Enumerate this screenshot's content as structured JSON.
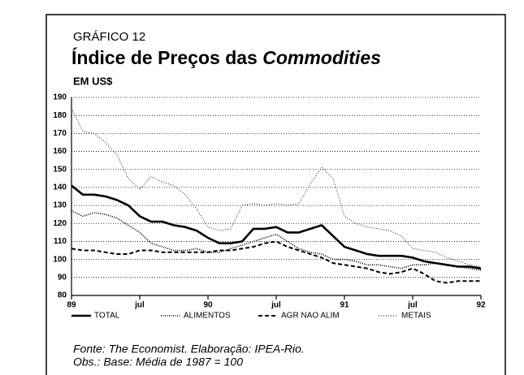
{
  "chart_data": {
    "type": "line",
    "label": "GRÁFICO 12",
    "title": [
      "Índice de Preços das",
      "Commodities"
    ],
    "subtitle": "EM US$",
    "notes": [
      "Fonte: The Economist. Elaboração: IPEA-Rio.",
      "Obs.: Base: Média de 1987 = 100"
    ],
    "x": [
      0,
      1,
      2,
      3,
      4,
      5,
      6,
      7,
      8,
      9,
      10,
      11,
      12,
      13,
      14,
      15,
      16,
      17,
      18,
      19,
      20,
      21,
      22,
      23,
      24,
      25,
      26,
      27,
      28,
      29,
      30,
      31,
      32,
      33,
      34,
      35,
      36
    ],
    "xlim": [
      0,
      36
    ],
    "xticks": [
      {
        "value": 0,
        "label": "89"
      },
      {
        "value": 6,
        "label": "jul"
      },
      {
        "value": 12,
        "label": "90"
      },
      {
        "value": 18,
        "label": "jul"
      },
      {
        "value": 24,
        "label": "91"
      },
      {
        "value": 30,
        "label": "jul"
      },
      {
        "value": 36,
        "label": "92"
      }
    ],
    "ylim": [
      80,
      190
    ],
    "yticks": [
      80,
      90,
      100,
      110,
      120,
      130,
      140,
      150,
      160,
      170,
      180,
      190
    ],
    "grid": true,
    "legend": "bottom",
    "series": [
      {
        "name": "TOTAL",
        "color": "#000000",
        "style": "thick",
        "values": [
          141,
          136,
          136,
          135,
          133,
          130,
          124,
          121,
          121,
          119,
          118,
          116,
          112,
          109,
          109,
          110,
          117,
          117,
          118,
          115,
          115,
          117,
          119,
          113,
          107,
          105,
          103,
          102,
          102,
          102,
          101,
          99,
          98,
          97,
          96,
          96,
          95
        ]
      },
      {
        "name": "ALIMENTOS",
        "color": "#000000",
        "style": "dotted",
        "values": [
          127,
          124,
          126,
          125,
          123,
          119,
          115,
          109,
          107,
          105,
          105,
          106,
          104,
          104,
          106,
          108,
          110,
          112,
          114,
          110,
          106,
          104,
          103,
          100,
          100,
          99,
          97,
          97,
          96,
          95,
          97,
          97,
          98,
          97,
          96,
          95,
          94
        ]
      },
      {
        "name": "AGR NAO ALIM",
        "color": "#000000",
        "style": "dashed",
        "values": [
          106,
          105,
          105,
          104,
          103,
          103,
          105,
          105,
          104,
          104,
          104,
          104,
          104,
          105,
          105,
          106,
          107,
          109,
          110,
          107,
          105,
          103,
          101,
          98,
          97,
          96,
          95,
          93,
          92,
          93,
          95,
          92,
          88,
          87,
          88,
          88,
          88
        ]
      },
      {
        "name": "METAIS",
        "color": "#000000",
        "style": "fine",
        "values": [
          184,
          171,
          170,
          165,
          158,
          145,
          139,
          146,
          143,
          141,
          136,
          128,
          118,
          116,
          117,
          130,
          131,
          130,
          131,
          130,
          131,
          142,
          151,
          145,
          124,
          120,
          118,
          117,
          116,
          113,
          106,
          105,
          104,
          101,
          99,
          97,
          96
        ]
      }
    ]
  }
}
